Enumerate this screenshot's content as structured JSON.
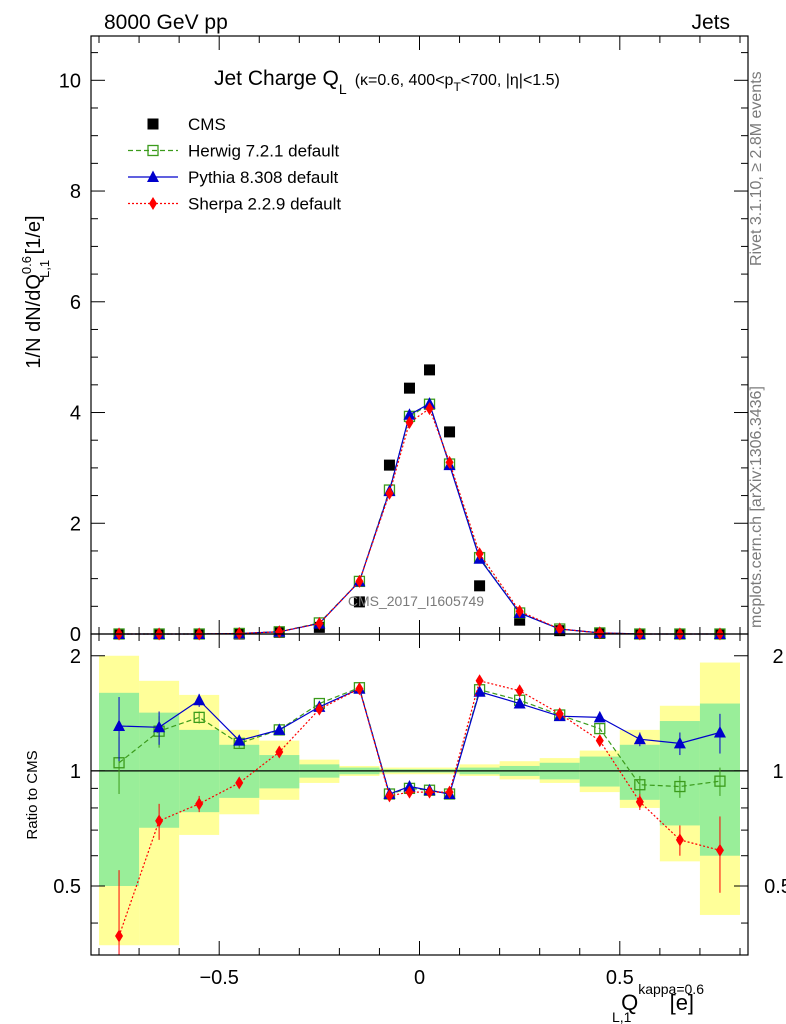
{
  "header": {
    "left": "8000 GeV pp",
    "right": "Jets"
  },
  "side_text": {
    "rivet": "Rivet 3.1.10, ≥ 2.8M events",
    "mcplots": "mcplots.cern.ch [arXiv:1306.3436]"
  },
  "title": {
    "main": "Jet Charge Q",
    "main_sub": "L",
    "cut_1": "(κ=0.6, 400<p",
    "cut_sub": "T",
    "cut_2": "<700, |η|<1.5)"
  },
  "watermark": "CMS_2017_I1605749",
  "ratio_ylabel": "Ratio to CMS",
  "legend": [
    {
      "label": "CMS",
      "color": "#000000",
      "marker": "square-filled",
      "line": "none"
    },
    {
      "label": "Herwig 7.2.1 default",
      "color": "#3b9b1b",
      "marker": "square-open",
      "line": "dashed"
    },
    {
      "label": "Pythia 8.308 default",
      "color": "#0000cc",
      "marker": "triangle",
      "line": "solid"
    },
    {
      "label": "Sherpa 2.2.9 default",
      "color": "#ff0000",
      "marker": "diamond",
      "line": "dotted"
    }
  ],
  "chart_data": [
    {
      "type": "scatter",
      "panel": "main",
      "ylabel_parts": [
        "1/N dN/dQ",
        "0.6",
        "L,1",
        " [1/e]"
      ],
      "xlim": [
        -0.82,
        0.82
      ],
      "ylim": [
        0,
        10.8
      ],
      "yticks": [
        0,
        2,
        4,
        6,
        8,
        10
      ],
      "x": [
        -0.75,
        -0.65,
        -0.55,
        -0.45,
        -0.35,
        -0.25,
        -0.15,
        -0.075,
        -0.025,
        0.025,
        0.075,
        0.15,
        0.25,
        0.35,
        0.45,
        0.55,
        0.65,
        0.75
      ],
      "series": [
        {
          "name": "CMS",
          "values": [
            0.0,
            0.0,
            0.0,
            0.0,
            0.03,
            0.12,
            0.58,
            3.05,
            4.44,
            4.77,
            3.65,
            0.87,
            0.25,
            0.06,
            0.01,
            0.0,
            0.0,
            0.0
          ]
        },
        {
          "name": "Herwig 7.2.1 default",
          "values": [
            0.0,
            0.0,
            0.0,
            0.01,
            0.04,
            0.2,
            0.95,
            2.6,
            3.93,
            4.15,
            3.07,
            1.38,
            0.38,
            0.09,
            0.02,
            0.0,
            0.0,
            0.0
          ]
        },
        {
          "name": "Pythia 8.308 default",
          "values": [
            0.0,
            0.0,
            0.0,
            0.01,
            0.04,
            0.19,
            0.95,
            2.58,
            3.96,
            4.16,
            3.05,
            1.36,
            0.38,
            0.09,
            0.02,
            0.0,
            0.0,
            0.0
          ]
        },
        {
          "name": "Sherpa 2.2.9 default",
          "values": [
            0.0,
            0.0,
            0.0,
            0.01,
            0.04,
            0.19,
            0.95,
            2.54,
            3.82,
            4.07,
            3.1,
            1.45,
            0.41,
            0.09,
            0.02,
            0.0,
            0.0,
            0.0
          ]
        }
      ]
    },
    {
      "type": "line",
      "panel": "ratio",
      "xlabel_parts": [
        "Q",
        "kappa=0.6",
        "L,1",
        " [e]"
      ],
      "xlim": [
        -0.82,
        0.82
      ],
      "ylim": [
        0.33,
        2.28
      ],
      "ylog": true,
      "yticks": [
        0.5,
        1,
        2
      ],
      "xticks": [
        -0.5,
        0,
        0.5
      ],
      "bin_edges": [
        -0.8,
        -0.7,
        -0.6,
        -0.5,
        -0.4,
        -0.3,
        -0.2,
        -0.1,
        -0.05,
        0.0,
        0.05,
        0.1,
        0.2,
        0.3,
        0.4,
        0.5,
        0.6,
        0.7,
        0.8
      ],
      "band_green": [
        [
          0.5,
          1.6
        ],
        [
          0.71,
          1.42
        ],
        [
          0.78,
          1.28
        ],
        [
          0.85,
          1.17
        ],
        [
          0.9,
          1.1
        ],
        [
          0.96,
          1.04
        ],
        [
          0.98,
          1.02
        ],
        [
          0.99,
          1.01
        ],
        [
          0.99,
          1.01
        ],
        [
          0.99,
          1.01
        ],
        [
          0.99,
          1.01
        ],
        [
          0.98,
          1.02
        ],
        [
          0.97,
          1.03
        ],
        [
          0.95,
          1.05
        ],
        [
          0.91,
          1.09
        ],
        [
          0.84,
          1.17
        ],
        [
          0.72,
          1.35
        ],
        [
          0.6,
          1.5
        ]
      ],
      "band_yellow": [
        [
          0.35,
          2.0
        ],
        [
          0.35,
          1.72
        ],
        [
          0.68,
          1.58
        ],
        [
          0.77,
          1.28
        ],
        [
          0.84,
          1.2
        ],
        [
          0.93,
          1.07
        ],
        [
          0.97,
          1.03
        ],
        [
          0.98,
          1.02
        ],
        [
          0.98,
          1.02
        ],
        [
          0.98,
          1.02
        ],
        [
          0.98,
          1.02
        ],
        [
          0.97,
          1.04
        ],
        [
          0.95,
          1.06
        ],
        [
          0.93,
          1.08
        ],
        [
          0.88,
          1.13
        ],
        [
          0.8,
          1.28
        ],
        [
          0.58,
          1.48
        ],
        [
          0.42,
          1.92
        ]
      ],
      "x": [
        -0.75,
        -0.65,
        -0.55,
        -0.45,
        -0.35,
        -0.25,
        -0.15,
        -0.075,
        -0.025,
        0.025,
        0.075,
        0.15,
        0.25,
        0.35,
        0.45,
        0.55,
        0.65,
        0.75
      ],
      "series": [
        {
          "name": "Herwig 7.2.1 default",
          "values": [
            1.05,
            1.27,
            1.38,
            1.18,
            1.28,
            1.5,
            1.65,
            0.87,
            0.9,
            0.89,
            0.87,
            1.63,
            1.53,
            1.4,
            1.29,
            0.92,
            0.91,
            0.94
          ],
          "err": [
            0.18,
            0.12,
            0.05,
            0.03,
            0.02,
            0.02,
            0.02,
            0.01,
            0.01,
            0.01,
            0.01,
            0.02,
            0.02,
            0.03,
            0.04,
            0.05,
            0.06,
            0.08
          ]
        },
        {
          "name": "Pythia 8.308 default",
          "values": [
            1.31,
            1.3,
            1.53,
            1.2,
            1.28,
            1.47,
            1.64,
            0.87,
            0.91,
            0.89,
            0.87,
            1.61,
            1.5,
            1.39,
            1.38,
            1.21,
            1.18,
            1.26
          ],
          "err": [
            0.25,
            0.13,
            0.06,
            0.03,
            0.02,
            0.02,
            0.02,
            0.01,
            0.01,
            0.01,
            0.01,
            0.02,
            0.02,
            0.03,
            0.03,
            0.05,
            0.08,
            0.15
          ]
        },
        {
          "name": "Sherpa 2.2.9 default",
          "values": [
            0.37,
            0.74,
            0.82,
            0.93,
            1.12,
            1.45,
            1.64,
            0.86,
            0.88,
            0.88,
            0.88,
            1.72,
            1.62,
            1.41,
            1.2,
            0.83,
            0.66,
            0.62
          ],
          "err": [
            0.18,
            0.08,
            0.04,
            0.02,
            0.02,
            0.02,
            0.02,
            0.01,
            0.01,
            0.01,
            0.01,
            0.02,
            0.02,
            0.02,
            0.02,
            0.04,
            0.06,
            0.14
          ]
        }
      ]
    }
  ]
}
